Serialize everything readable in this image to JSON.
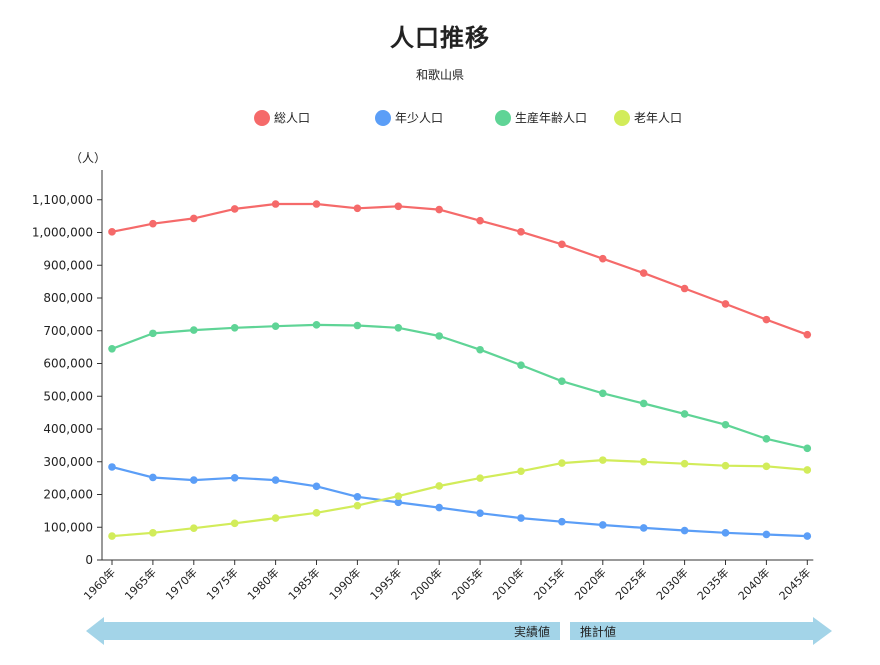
{
  "chart_data": {
    "type": "line",
    "title": "人口推移",
    "subtitle": "和歌山県",
    "ylabel": "（人）",
    "ylim": [
      0,
      1200000
    ],
    "yticks": [
      0,
      100000,
      200000,
      300000,
      400000,
      500000,
      600000,
      700000,
      800000,
      900000,
      1000000,
      1100000
    ],
    "ytick_labels": [
      "0",
      "100,000",
      "200,000",
      "300,000",
      "400,000",
      "500,000",
      "600,000",
      "700,000",
      "800,000",
      "900,000",
      "1,000,000",
      "1,100,000"
    ],
    "categories": [
      "1960年",
      "1965年",
      "1970年",
      "1975年",
      "1980年",
      "1985年",
      "1990年",
      "1995年",
      "2000年",
      "2005年",
      "2010年",
      "2015年",
      "2020年",
      "2025年",
      "2030年",
      "2035年",
      "2040年",
      "2045年"
    ],
    "legend_position": "top",
    "grid": false,
    "series": [
      {
        "name": "総人口",
        "color": "#f56a6a",
        "values": [
          1002000,
          1027000,
          1043000,
          1072000,
          1087000,
          1087000,
          1074000,
          1080000,
          1070000,
          1036000,
          1002000,
          964000,
          920000,
          876000,
          829000,
          782000,
          734000,
          688000
        ]
      },
      {
        "name": "年少人口",
        "color": "#5b9ef7",
        "values": [
          284000,
          252000,
          244000,
          251000,
          244000,
          225000,
          193000,
          176000,
          160000,
          143000,
          128000,
          117000,
          107000,
          98000,
          90000,
          83000,
          78000,
          73000
        ]
      },
      {
        "name": "生産年齢人口",
        "color": "#5fd496",
        "values": [
          645000,
          692000,
          702000,
          709000,
          714000,
          718000,
          716000,
          709000,
          684000,
          642000,
          595000,
          546000,
          509000,
          478000,
          446000,
          413000,
          370000,
          341000
        ]
      },
      {
        "name": "老年人口",
        "color": "#d2ec5a",
        "values": [
          73000,
          83000,
          97000,
          112000,
          128000,
          144000,
          166000,
          195000,
          226000,
          250000,
          271000,
          296000,
          305000,
          300000,
          294000,
          288000,
          286000,
          275000
        ]
      }
    ],
    "period_labels": {
      "actual": "実績値",
      "projected": "推計値"
    },
    "arrow_color": "#a3d4e8"
  }
}
